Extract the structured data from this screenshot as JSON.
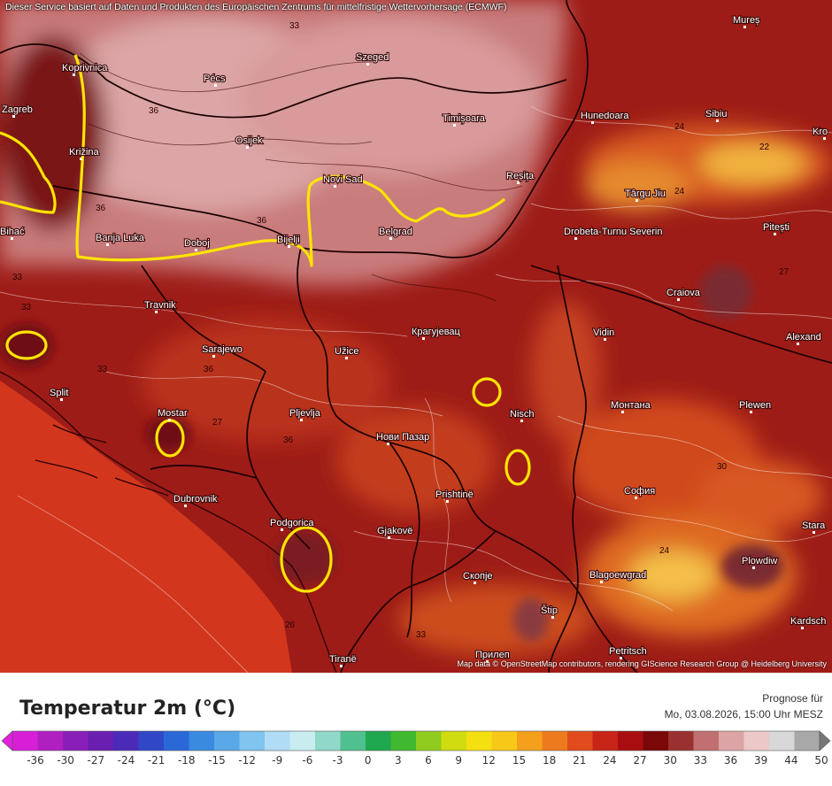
{
  "notice": "Dieser Service basiert auf Daten und Produkten des Europäischen Zentrums für mittelfristige Wettervorhersage (ECMWF)",
  "attribution": "Map data © OpenStreetMap contributors, rendering GIScience Research Group @ Heidelberg University",
  "legend": {
    "title": "Temperatur 2m (°C)",
    "forecast_label": "Prognose für",
    "forecast_time": "Mo, 03.08.2026, 15:00 Uhr MESZ",
    "ticks": [
      "-36",
      "-30",
      "-27",
      "-24",
      "-21",
      "-18",
      "-15",
      "-12",
      "-9",
      "-6",
      "-3",
      "0",
      "3",
      "6",
      "9",
      "12",
      "15",
      "18",
      "21",
      "24",
      "27",
      "30",
      "33",
      "36",
      "39",
      "44",
      "50"
    ]
  },
  "cities": [
    {
      "key": "koprivnica",
      "name": "Koprivnica"
    },
    {
      "key": "zagreb",
      "name": "Zagreb"
    },
    {
      "key": "pecs",
      "name": "Pécs"
    },
    {
      "key": "szeged",
      "name": "Szeged"
    },
    {
      "key": "mures",
      "name": "Mureș"
    },
    {
      "key": "osijek",
      "name": "Osijek"
    },
    {
      "key": "timisoara",
      "name": "Timișoara"
    },
    {
      "key": "hunedoara",
      "name": "Hunedoara"
    },
    {
      "key": "sibiu",
      "name": "Sibiu"
    },
    {
      "key": "kro",
      "name": "Kro"
    },
    {
      "key": "krizina",
      "name": "Križina"
    },
    {
      "key": "novisad",
      "name": "Novi Sad"
    },
    {
      "key": "resita",
      "name": "Reșița"
    },
    {
      "key": "targujiu",
      "name": "Târgu Jiu"
    },
    {
      "key": "bihac",
      "name": "Bihać"
    },
    {
      "key": "banjaluka",
      "name": "Banja Luka"
    },
    {
      "key": "doboj",
      "name": "Doboj"
    },
    {
      "key": "bijeljina",
      "name": "Bijelji"
    },
    {
      "key": "belgrad",
      "name": "Belgrad"
    },
    {
      "key": "drobeta",
      "name": "Drobeta-Turnu Severin"
    },
    {
      "key": "pitesti",
      "name": "Pitești"
    },
    {
      "key": "travnik",
      "name": "Travnik"
    },
    {
      "key": "craiova",
      "name": "Craiova"
    },
    {
      "key": "kragujevac",
      "name": "Крагујевац"
    },
    {
      "key": "sarajewo",
      "name": "Sarajewo"
    },
    {
      "key": "uzice",
      "name": "Užice"
    },
    {
      "key": "vidin",
      "name": "Vidin"
    },
    {
      "key": "alexand",
      "name": "Alexand"
    },
    {
      "key": "split",
      "name": "Split"
    },
    {
      "key": "mostar",
      "name": "Mostar"
    },
    {
      "key": "pljevlja",
      "name": "Pljevlja"
    },
    {
      "key": "novipazar",
      "name": "Нови Пазар"
    },
    {
      "key": "nisch",
      "name": "Nisch"
    },
    {
      "key": "montana",
      "name": "Монтана"
    },
    {
      "key": "plewen",
      "name": "Plewen"
    },
    {
      "key": "pristina",
      "name": "Prishtinë"
    },
    {
      "key": "sofia",
      "name": "София"
    },
    {
      "key": "dubrovnik",
      "name": "Dubrovnik"
    },
    {
      "key": "stara",
      "name": "Stara"
    },
    {
      "key": "podgorica",
      "name": "Podgorica"
    },
    {
      "key": "gjakove",
      "name": "Gjakovë"
    },
    {
      "key": "skopje",
      "name": "Скопје"
    },
    {
      "key": "blagoevgrad",
      "name": "Blagoewgrad"
    },
    {
      "key": "plowdiw",
      "name": "Plowdiw"
    },
    {
      "key": "stip",
      "name": "Štip"
    },
    {
      "key": "kardsch",
      "name": "Kardsch"
    },
    {
      "key": "tirane",
      "name": "Tiranë"
    },
    {
      "key": "prilep",
      "name": "Прилеп"
    },
    {
      "key": "petritsch",
      "name": "Petritsch"
    }
  ],
  "contour_labels": [
    "33",
    "36",
    "36",
    "36",
    "33",
    "33",
    "33",
    "22",
    "24",
    "24",
    "36",
    "36",
    "27",
    "26",
    "24",
    "30",
    "27",
    "30",
    "33"
  ],
  "colors": {
    "hot_base": "#9b1a1a",
    "very_hot": "#c9a0a0",
    "highlight_contour": "#ffe400"
  }
}
